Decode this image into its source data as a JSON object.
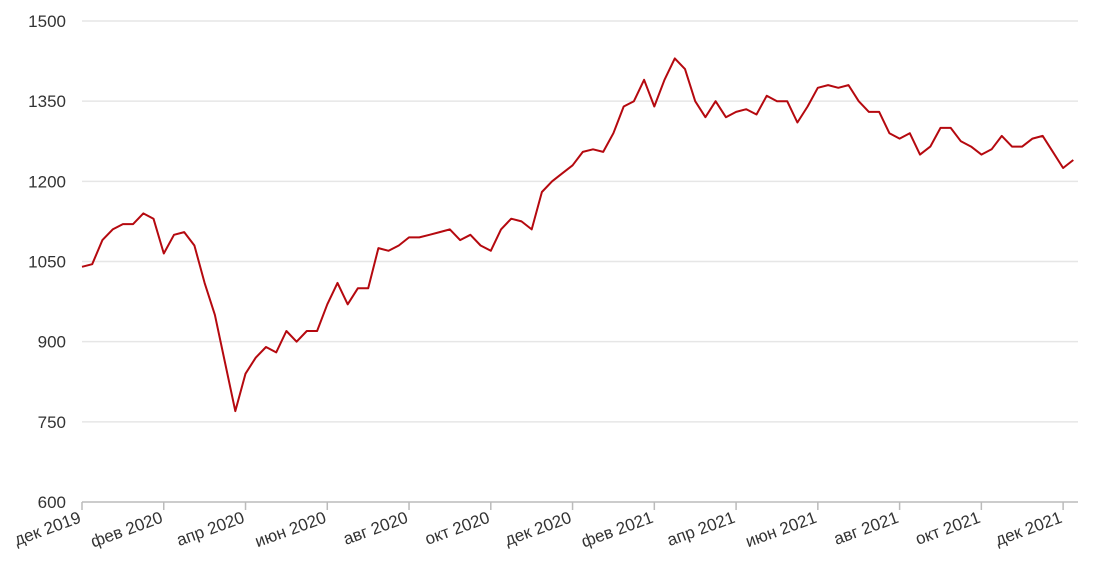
{
  "chart_data": {
    "type": "line",
    "categories": [
      "дек 2019",
      null,
      null,
      null,
      null,
      null,
      null,
      null,
      "фев 2020",
      null,
      null,
      null,
      null,
      null,
      null,
      null,
      "апр 2020",
      null,
      null,
      null,
      null,
      null,
      null,
      null,
      "июн 2020",
      null,
      null,
      null,
      null,
      null,
      null,
      null,
      "авг 2020",
      null,
      null,
      null,
      null,
      null,
      null,
      null,
      "окт 2020",
      null,
      null,
      null,
      null,
      null,
      null,
      null,
      "дек 2020",
      null,
      null,
      null,
      null,
      null,
      null,
      null,
      "фев 2021",
      null,
      null,
      null,
      null,
      null,
      null,
      null,
      "апр 2021",
      null,
      null,
      null,
      null,
      null,
      null,
      null,
      "июн 2021",
      null,
      null,
      null,
      null,
      null,
      null,
      null,
      "авг 2021",
      null,
      null,
      null,
      null,
      null,
      null,
      null,
      "окт 2021",
      null,
      null,
      null,
      null,
      null,
      null,
      null,
      "дек 2021",
      null
    ],
    "series": [
      {
        "color": "#b5090f",
        "values": [
          1040,
          1045,
          1090,
          1110,
          1120,
          1120,
          1140,
          1130,
          1065,
          1100,
          1105,
          1080,
          1010,
          950,
          860,
          770,
          840,
          870,
          890,
          880,
          920,
          900,
          920,
          920,
          970,
          1010,
          970,
          1000,
          1000,
          1075,
          1070,
          1080,
          1095,
          1095,
          1100,
          1105,
          1110,
          1090,
          1100,
          1080,
          1070,
          1110,
          1130,
          1125,
          1110,
          1180,
          1200,
          1215,
          1230,
          1255,
          1260,
          1255,
          1290,
          1340,
          1350,
          1390,
          1340,
          1390,
          1430,
          1410,
          1350,
          1320,
          1350,
          1320,
          1330,
          1335,
          1325,
          1360,
          1350,
          1350,
          1310,
          1340,
          1375,
          1380,
          1375,
          1380,
          1350,
          1330,
          1330,
          1290,
          1280,
          1290,
          1250,
          1265,
          1300,
          1300,
          1275,
          1265,
          1250,
          1260,
          1285,
          1265,
          1265,
          1280,
          1285,
          1255,
          1225,
          1240
        ]
      }
    ],
    "ylim": [
      600,
      1500
    ],
    "yticks": [
      600,
      750,
      900,
      1050,
      1200,
      1350,
      1500
    ],
    "grid": true
  }
}
